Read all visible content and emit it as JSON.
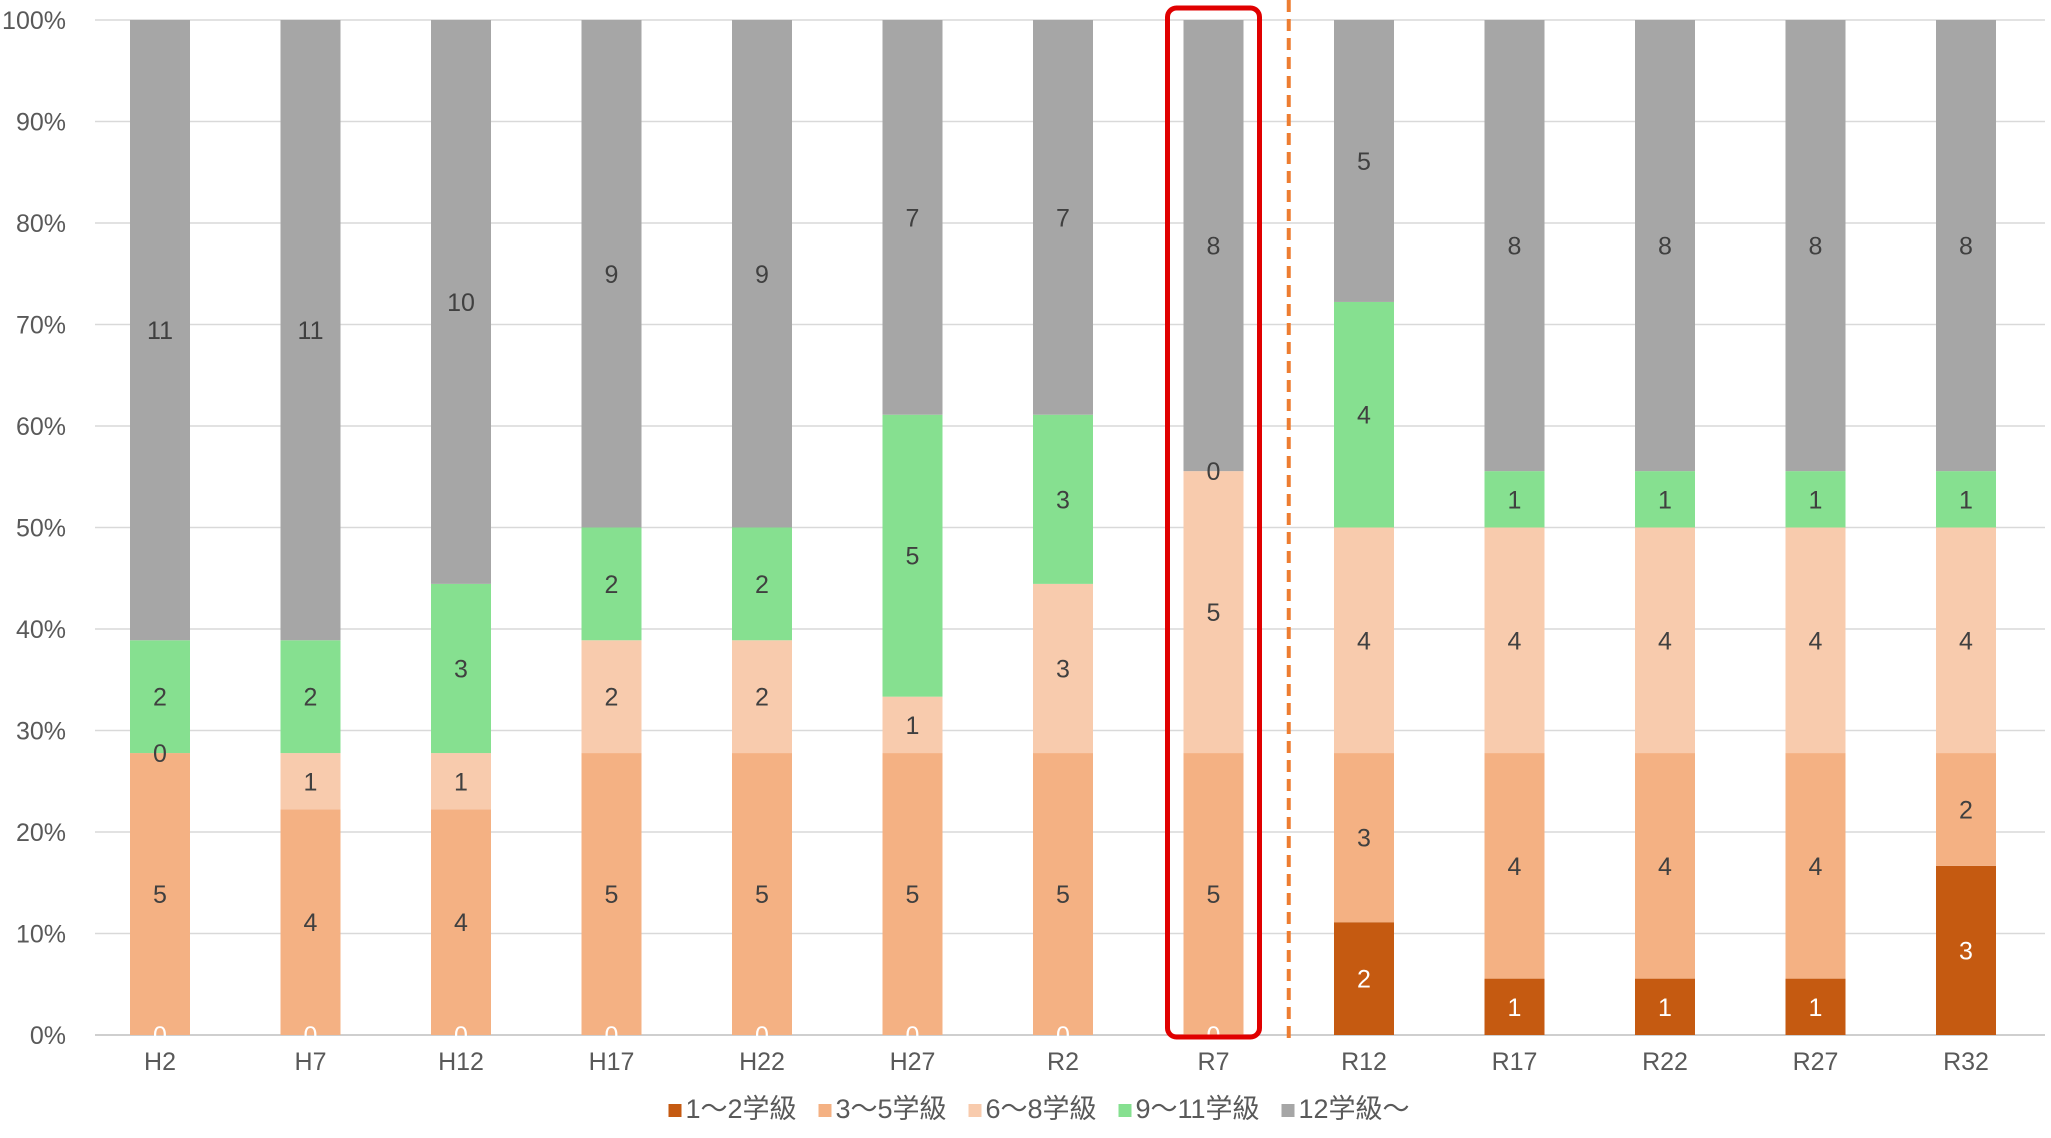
{
  "chart_data": {
    "type": "bar",
    "stacked": "percent",
    "title": "",
    "xlabel": "",
    "ylabel": "",
    "ylim": [
      0,
      100
    ],
    "yticks": [
      "0%",
      "10%",
      "20%",
      "30%",
      "40%",
      "50%",
      "60%",
      "70%",
      "80%",
      "90%",
      "100%"
    ],
    "grid": true,
    "legend_position": "bottom",
    "categories": [
      "H2",
      "H7",
      "H12",
      "H17",
      "H22",
      "H27",
      "R2",
      "R7",
      "R12",
      "R17",
      "R22",
      "R27",
      "R32"
    ],
    "series": [
      {
        "name": "1～2学級",
        "color": "#C55A11",
        "values": [
          0,
          0,
          0,
          0,
          0,
          0,
          0,
          0,
          2,
          1,
          1,
          1,
          3
        ]
      },
      {
        "name": "3～5学級",
        "color": "#F4B183",
        "values": [
          5,
          4,
          4,
          5,
          5,
          5,
          5,
          5,
          3,
          4,
          4,
          4,
          2
        ]
      },
      {
        "name": "6～8学級",
        "color": "#F8CBAD",
        "values": [
          0,
          1,
          1,
          2,
          2,
          1,
          3,
          5,
          4,
          4,
          4,
          4,
          4
        ]
      },
      {
        "name": "9～11学級",
        "color": "#86E090",
        "values": [
          2,
          2,
          3,
          2,
          2,
          5,
          3,
          0,
          4,
          1,
          1,
          1,
          1
        ]
      },
      {
        "name": "12学級～",
        "color": "#A6A6A6",
        "values": [
          11,
          11,
          10,
          9,
          9,
          7,
          7,
          8,
          5,
          8,
          8,
          8,
          8
        ]
      }
    ],
    "highlight_category": "R7",
    "highlight_color": "#E00000",
    "divider_after_category": "R7",
    "divider_color": "#ED7D31"
  }
}
